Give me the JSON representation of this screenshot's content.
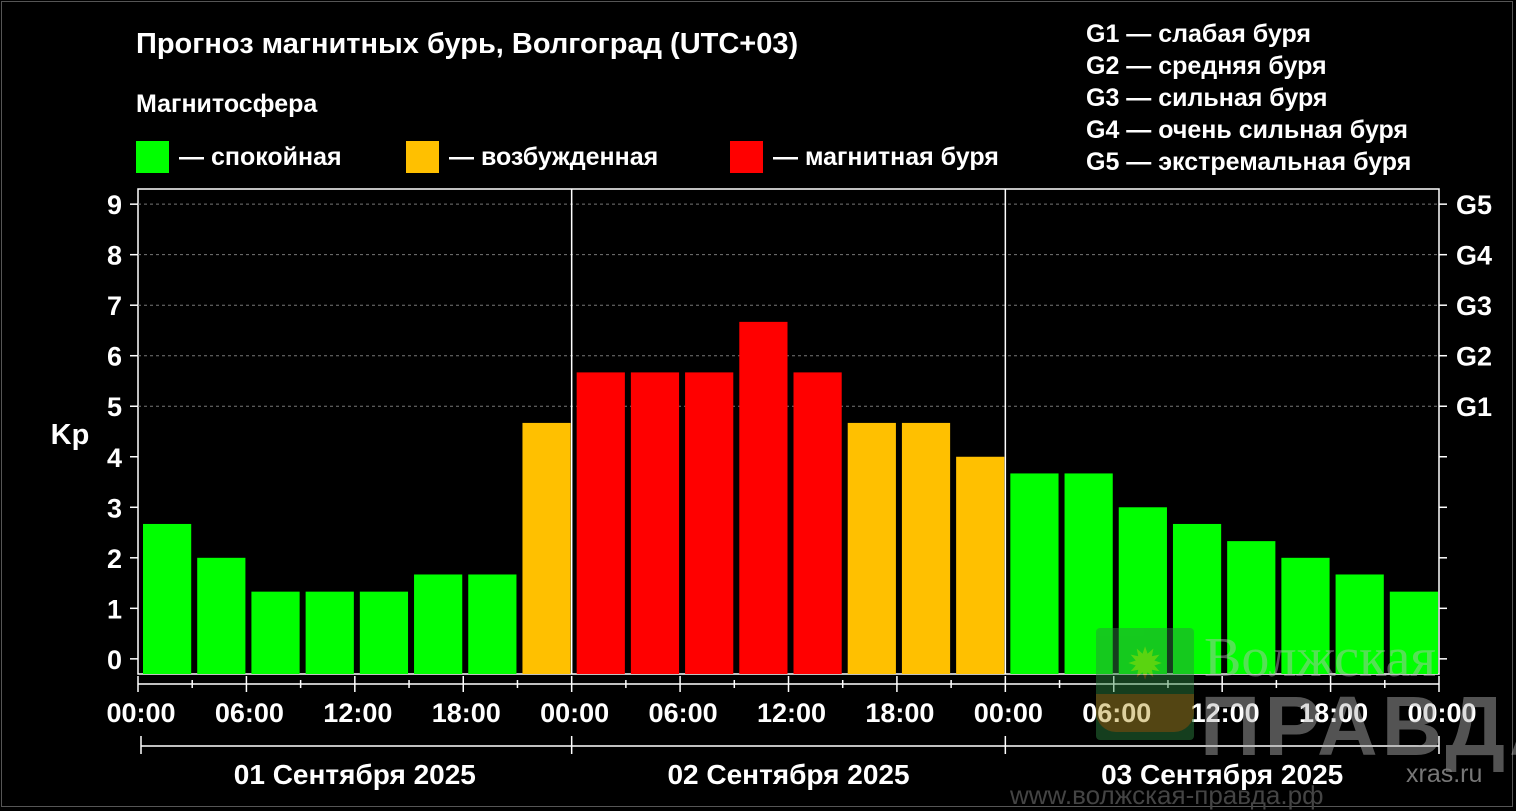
{
  "title": "Прогноз магнитных бурь, Волгоград (UTC+03)",
  "subtitle": "Магнитосфера",
  "legend": [
    {
      "label": "— спокойная",
      "color": "#00ff00"
    },
    {
      "label": "— возбужденная",
      "color": "#ffc000"
    },
    {
      "label": "— магнитная буря",
      "color": "#ff0000"
    }
  ],
  "g_legend": [
    "G1 — слабая буря",
    "G2 — средняя буря",
    "G3 — сильная буря",
    "G4 — очень сильная буря",
    "G5 — экстремальная буря"
  ],
  "watermark": {
    "line1": "Волжская",
    "line2": "ПРАВДА",
    "site": "xras.ru",
    "site2": "www.волжская-правда.рф"
  },
  "chart_data": {
    "type": "bar",
    "ylabel": "Kp",
    "ylim": [
      -0.3,
      9.3
    ],
    "y_ticks": [
      0,
      1,
      2,
      3,
      4,
      5,
      6,
      7,
      8,
      9
    ],
    "right_ticks": [
      {
        "value": 5,
        "label": "G1"
      },
      {
        "value": 6,
        "label": "G2"
      },
      {
        "value": 7,
        "label": "G3"
      },
      {
        "value": 8,
        "label": "G4"
      },
      {
        "value": 9,
        "label": "G5"
      }
    ],
    "grid": true,
    "x_tick_labels": [
      "00:00",
      "06:00",
      "12:00",
      "18:00",
      "00:00",
      "06:00",
      "12:00",
      "18:00",
      "00:00",
      "06:00",
      "12:00",
      "18:00",
      "00:00"
    ],
    "days": [
      "01 Сентября 2025",
      "02 Сентября 2025",
      "03 Сентября 2025"
    ],
    "colors": {
      "quiet": "#00ff00",
      "active": "#ffc000",
      "storm": "#ff0000"
    },
    "values": [
      2.67,
      2.0,
      1.33,
      1.33,
      1.33,
      1.67,
      1.67,
      4.67,
      5.67,
      5.67,
      5.67,
      6.67,
      5.67,
      4.67,
      4.67,
      4.0,
      3.67,
      3.67,
      3.0,
      2.67,
      2.33,
      2.0,
      1.67,
      1.33
    ],
    "levels": [
      "quiet",
      "quiet",
      "quiet",
      "quiet",
      "quiet",
      "quiet",
      "quiet",
      "active",
      "storm",
      "storm",
      "storm",
      "storm",
      "storm",
      "active",
      "active",
      "active",
      "quiet",
      "quiet",
      "quiet",
      "quiet",
      "quiet",
      "quiet",
      "quiet",
      "quiet"
    ]
  }
}
